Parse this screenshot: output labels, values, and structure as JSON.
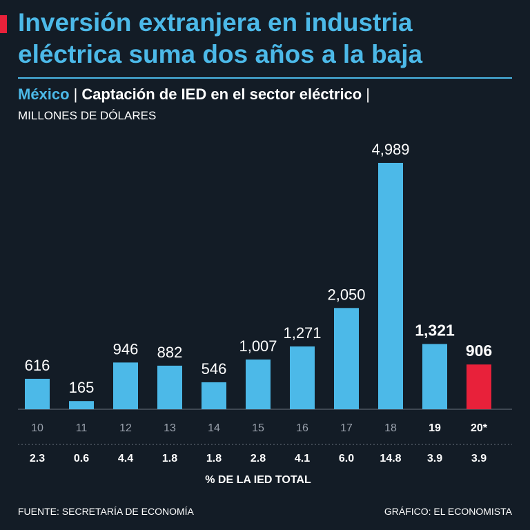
{
  "header": {
    "title": "Inversión extranjera en industria eléctrica suma dos años a la baja",
    "country": "México",
    "separator": "|",
    "metric": "Captación de IED en el sector eléctrico",
    "units": "MILLONES DE DÓLARES"
  },
  "footer": {
    "source": "FUENTE: SECRETARÍA DE ECONOMÍA",
    "credit": "GRÁFICO: EL ECONOMISTA"
  },
  "colors": {
    "background": "#131c26",
    "bar": "#4cb9e8",
    "highlight_bar": "#e8213a",
    "title": "#4cb9e8"
  },
  "chart_data": {
    "type": "bar",
    "categories": [
      "10",
      "11",
      "12",
      "13",
      "14",
      "15",
      "16",
      "17",
      "18",
      "19",
      "20*"
    ],
    "values": [
      616,
      165,
      946,
      882,
      546,
      1007,
      1271,
      2050,
      4989,
      1321,
      906
    ],
    "value_labels": [
      "616",
      "165",
      "946",
      "882",
      "546",
      "1,007",
      "1,271",
      "2,050",
      "4,989",
      "1,321",
      "906"
    ],
    "bold_labels": [
      false,
      false,
      false,
      false,
      false,
      false,
      false,
      false,
      false,
      true,
      true
    ],
    "highlight_index": 10,
    "secondary_row": {
      "label": "% DE LA IED TOTAL",
      "values": [
        "2.3",
        "0.6",
        "4.4",
        "1.8",
        "1.8",
        "2.8",
        "4.1",
        "6.0",
        "14.8",
        "3.9",
        "3.9"
      ]
    },
    "ylim": [
      0,
      5000
    ],
    "grid": false,
    "legend": "none"
  }
}
